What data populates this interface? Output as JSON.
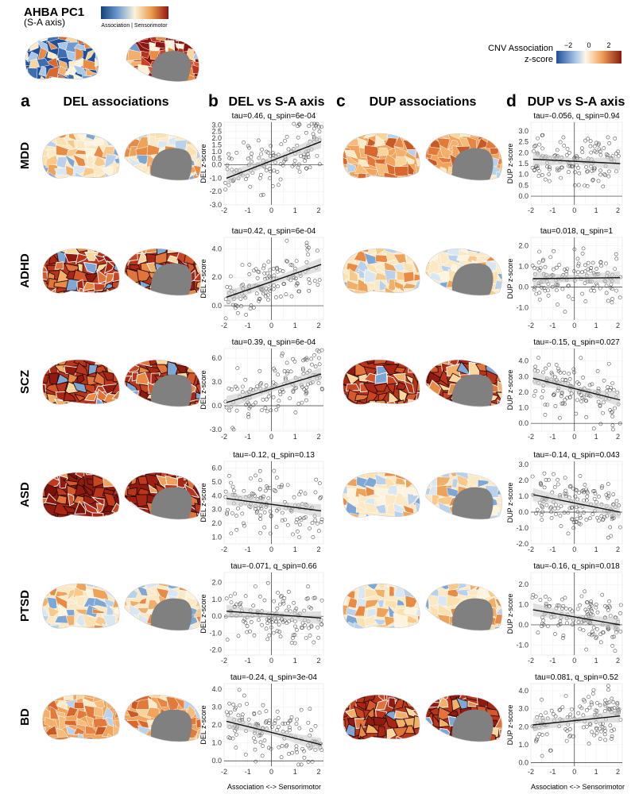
{
  "header": {
    "title": "AHBA PC1",
    "subtitle": "(S-A axis)",
    "colorbar_label": "Association | Sensorimotor",
    "legend_title_1": "CNV Association",
    "legend_title_2": "z-score",
    "legend_ticks": [
      "−2",
      "0",
      "2"
    ]
  },
  "columns": [
    {
      "letter": "a",
      "title": "DEL associations"
    },
    {
      "letter": "b",
      "title": "DEL vs S-A axis"
    },
    {
      "letter": "c",
      "title": "DUP associations"
    },
    {
      "letter": "d",
      "title": "DUP vs S-A axis"
    }
  ],
  "rows": [
    {
      "label": "MDD",
      "del_tone": "mixed",
      "dup_tone": "warm"
    },
    {
      "label": "ADHD",
      "del_tone": "hot",
      "dup_tone": "mixed"
    },
    {
      "label": "SCZ",
      "del_tone": "hot",
      "dup_tone": "hot"
    },
    {
      "label": "ASD",
      "del_tone": "very-hot",
      "dup_tone": "mixed"
    },
    {
      "label": "PTSD",
      "del_tone": "mixed",
      "dup_tone": "mixed"
    },
    {
      "label": "BD",
      "del_tone": "warm",
      "dup_tone": "hot"
    }
  ],
  "x_axis_label": "Association <-> Sensorimotor",
  "chart_data": [
    {
      "type": "scatter",
      "row": "MDD",
      "cnv": "DEL",
      "stat": "tau=0.46, q_spin=6e-04",
      "ylabel": "DEL z-score",
      "yticks": [
        "3.0",
        "2.5",
        "2.0",
        "1.5",
        "1.0",
        "0.5",
        "0.0",
        "-1.0",
        "-2.0",
        "-3.0"
      ],
      "ytick_values": [
        3.0,
        2.5,
        2.0,
        1.5,
        1.0,
        0.5,
        0.0,
        -1.0,
        -2.0,
        -3.0
      ],
      "xticks": [
        "-2",
        "-1",
        "0",
        "1",
        "2"
      ],
      "xlim": [
        -2,
        2.2
      ],
      "ylim": [
        -3,
        3.2
      ],
      "fit": {
        "x": [
          -1.9,
          2.1
        ],
        "y": [
          -1.0,
          1.75
        ]
      },
      "n_points": 130,
      "seed": 11
    },
    {
      "type": "scatter",
      "row": "MDD",
      "cnv": "DUP",
      "stat": "tau=-0.056, q_spin=0.94",
      "ylabel": "DUP z-score",
      "yticks": [
        "3.0",
        "2.5",
        "2.0",
        "1.5",
        "1.0",
        "0.5",
        "0.0"
      ],
      "ytick_values": [
        3.0,
        2.5,
        2.0,
        1.5,
        1.0,
        0.5,
        0.0
      ],
      "xticks": [
        "-2",
        "-1",
        "0",
        "1",
        "2"
      ],
      "xlim": [
        -2,
        2.2
      ],
      "ylim": [
        -0.4,
        3.4
      ],
      "fit": {
        "x": [
          -1.9,
          2.1
        ],
        "y": [
          1.7,
          1.5
        ]
      },
      "n_points": 130,
      "seed": 12
    },
    {
      "type": "scatter",
      "row": "ADHD",
      "cnv": "DEL",
      "stat": "tau=0.42, q_spin=6e-04",
      "ylabel": "DEL z-score",
      "yticks": [
        "4.0",
        "2.0",
        "0.0"
      ],
      "ytick_values": [
        4.0,
        2.0,
        0.0
      ],
      "xticks": [
        "-2",
        "-1",
        "0",
        "1",
        "2"
      ],
      "xlim": [
        -2,
        2.2
      ],
      "ylim": [
        -1.0,
        4.8
      ],
      "fit": {
        "x": [
          -1.9,
          2.1
        ],
        "y": [
          0.6,
          2.9
        ]
      },
      "n_points": 130,
      "seed": 13
    },
    {
      "type": "scatter",
      "row": "ADHD",
      "cnv": "DUP",
      "stat": "tau=0.018, q_spin=1",
      "ylabel": "DUP z-score",
      "yticks": [
        "2.0",
        "1.0",
        "0.0",
        "-1.0"
      ],
      "ytick_values": [
        2.0,
        1.0,
        0.0,
        -1.0
      ],
      "xticks": [
        "-2",
        "-1",
        "0",
        "1",
        "2"
      ],
      "xlim": [
        -2,
        2.2
      ],
      "ylim": [
        -1.6,
        2.4
      ],
      "fit": {
        "x": [
          -1.9,
          2.1
        ],
        "y": [
          0.4,
          0.45
        ]
      },
      "n_points": 130,
      "seed": 14
    },
    {
      "type": "scatter",
      "row": "SCZ",
      "cnv": "DEL",
      "stat": "tau=0.39, q_spin=6e-04",
      "ylabel": "DEL z-score",
      "yticks": [
        "6.0",
        "3.0",
        "0.0",
        "-3.0"
      ],
      "ytick_values": [
        6.0,
        3.0,
        0.0,
        -3.0
      ],
      "xticks": [
        "-2",
        "-1",
        "0",
        "1",
        "2"
      ],
      "xlim": [
        -2,
        2.2
      ],
      "ylim": [
        -3.2,
        7.2
      ],
      "fit": {
        "x": [
          -1.9,
          2.1
        ],
        "y": [
          0.4,
          4.0
        ]
      },
      "n_points": 130,
      "seed": 15
    },
    {
      "type": "scatter",
      "row": "SCZ",
      "cnv": "DUP",
      "stat": "tau=-0.15, q_spin=0.027",
      "ylabel": "DUP z-score",
      "yticks": [
        "4.0",
        "3.0",
        "2.0",
        "1.0",
        "0.0"
      ],
      "ytick_values": [
        4.0,
        3.0,
        2.0,
        1.0,
        0.0
      ],
      "xticks": [
        "-2",
        "-1",
        "0",
        "1",
        "2"
      ],
      "xlim": [
        -2,
        2.2
      ],
      "ylim": [
        -0.5,
        4.8
      ],
      "fit": {
        "x": [
          -1.9,
          2.1
        ],
        "y": [
          2.9,
          1.5
        ]
      },
      "n_points": 130,
      "seed": 16
    },
    {
      "type": "scatter",
      "row": "ASD",
      "cnv": "DEL",
      "stat": "tau=-0.12, q_spin=0.13",
      "ylabel": "DEL z-score",
      "yticks": [
        "6.0",
        "5.0",
        "4.0",
        "3.0",
        "2.0",
        "1.0"
      ],
      "ytick_values": [
        6.0,
        5.0,
        4.0,
        3.0,
        2.0,
        1.0
      ],
      "xticks": [
        "-2",
        "-1",
        "0",
        "1",
        "2"
      ],
      "xlim": [
        -2,
        2.2
      ],
      "ylim": [
        0.5,
        6.5
      ],
      "fit": {
        "x": [
          -1.9,
          2.1
        ],
        "y": [
          3.8,
          2.9
        ]
      },
      "n_points": 130,
      "seed": 17
    },
    {
      "type": "scatter",
      "row": "ASD",
      "cnv": "DUP",
      "stat": "tau=-0.14, q_spin=0.043",
      "ylabel": "DUP z-score",
      "yticks": [
        "3.0",
        "2.0",
        "1.0",
        "0.0",
        "-1.0",
        "-2.0"
      ],
      "ytick_values": [
        3.0,
        2.0,
        1.0,
        0.0,
        -1.0,
        -2.0
      ],
      "xticks": [
        "-2",
        "-1",
        "0",
        "1",
        "2"
      ],
      "xlim": [
        -2,
        2.2
      ],
      "ylim": [
        -2.0,
        3.2
      ],
      "fit": {
        "x": [
          -1.9,
          2.1
        ],
        "y": [
          1.1,
          0.0
        ]
      },
      "n_points": 140,
      "seed": 18
    },
    {
      "type": "scatter",
      "row": "PTSD",
      "cnv": "DEL",
      "stat": "tau=-0.071, q_spin=0.66",
      "ylabel": "DEL z-score",
      "yticks": [
        "2.0",
        "1.0",
        "0.0",
        "-1.0",
        "-2.0"
      ],
      "ytick_values": [
        2.0,
        1.0,
        0.0,
        -1.0,
        -2.0
      ],
      "xticks": [
        "-2",
        "-1",
        "0",
        "1",
        "2"
      ],
      "xlim": [
        -2,
        2.2
      ],
      "ylim": [
        -2.3,
        2.6
      ],
      "fit": {
        "x": [
          -1.9,
          2.1
        ],
        "y": [
          0.3,
          -0.1
        ]
      },
      "n_points": 130,
      "seed": 19
    },
    {
      "type": "scatter",
      "row": "PTSD",
      "cnv": "DUP",
      "stat": "tau=-0.16, q_spin=0.018",
      "ylabel": "DUP z-score",
      "yticks": [
        "2.0",
        "1.0",
        "0.0",
        "-1.0"
      ],
      "ytick_values": [
        2.0,
        1.0,
        0.0,
        -1.0
      ],
      "xticks": [
        "-2",
        "-1",
        "0",
        "1",
        "2"
      ],
      "xlim": [
        -2,
        2.2
      ],
      "ylim": [
        -1.5,
        2.6
      ],
      "fit": {
        "x": [
          -1.9,
          2.1
        ],
        "y": [
          0.75,
          0.0
        ]
      },
      "n_points": 130,
      "seed": 20
    },
    {
      "type": "scatter",
      "row": "BD",
      "cnv": "DEL",
      "stat": "tau=-0.24, q_spin=3e-04",
      "ylabel": "DEL z-score",
      "yticks": [
        "4.0",
        "3.0",
        "2.0",
        "1.0",
        "0.0"
      ],
      "ytick_values": [
        4.0,
        3.0,
        2.0,
        1.0,
        0.0
      ],
      "xticks": [
        "-2",
        "-1",
        "0",
        "1",
        "2"
      ],
      "xlim": [
        -2,
        2.2
      ],
      "ylim": [
        -0.3,
        4.3
      ],
      "fit": {
        "x": [
          -1.9,
          2.1
        ],
        "y": [
          2.2,
          0.9
        ]
      },
      "n_points": 130,
      "seed": 21
    },
    {
      "type": "scatter",
      "row": "BD",
      "cnv": "DUP",
      "stat": "tau=0.081, q_spin=0.52",
      "ylabel": "DUP z-score",
      "yticks": [
        "4.0",
        "3.0",
        "2.0",
        "1.0",
        "0.0"
      ],
      "ytick_values": [
        4.0,
        3.0,
        2.0,
        1.0,
        0.0
      ],
      "xticks": [
        "-2",
        "-1",
        "0",
        "1",
        "2"
      ],
      "xlim": [
        -2,
        2.2
      ],
      "ylim": [
        -0.2,
        4.4
      ],
      "fit": {
        "x": [
          -1.9,
          2.1
        ],
        "y": [
          2.1,
          2.6
        ]
      },
      "n_points": 130,
      "seed": 22
    }
  ]
}
